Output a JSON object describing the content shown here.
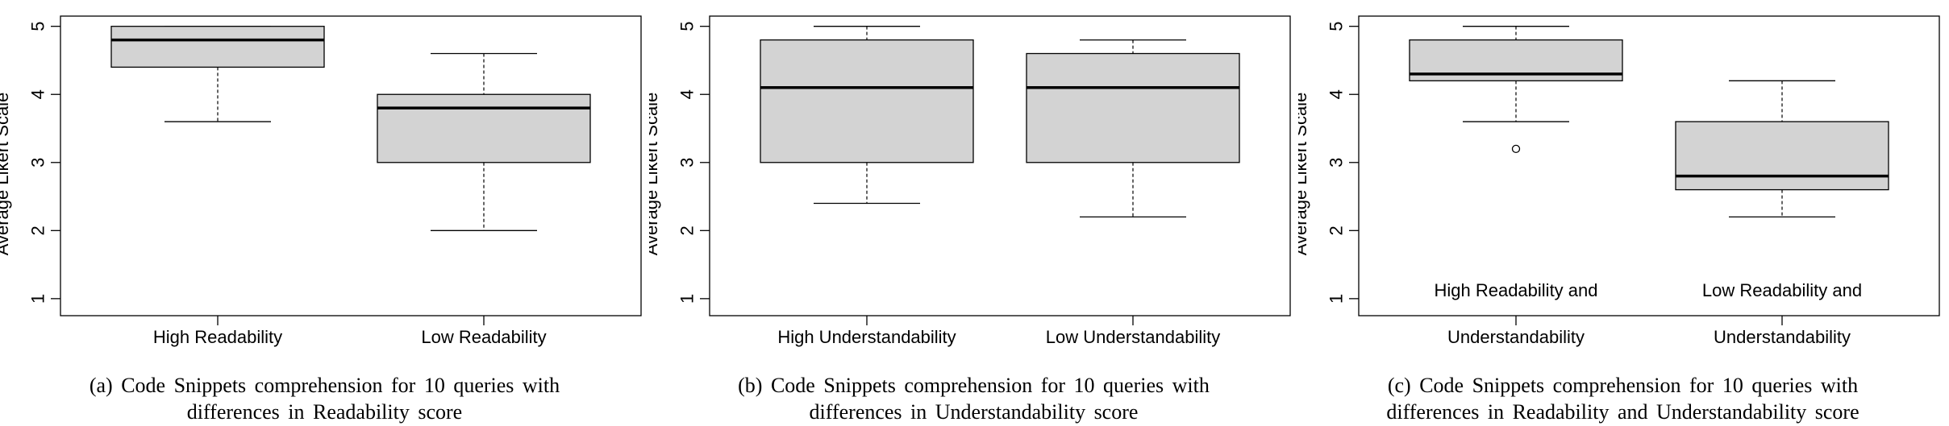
{
  "chart_data": [
    {
      "type": "box",
      "ylabel": "Average Likert Scale",
      "ylim": [
        0.75,
        5.15
      ],
      "yticks": [
        1,
        2,
        3,
        4,
        5
      ],
      "categories": [
        [
          "High Readability"
        ],
        [
          "Low Readability"
        ]
      ],
      "boxes": [
        {
          "whisker_low": 3.6,
          "q1": 4.4,
          "median": 4.8,
          "q3": 5.0,
          "whisker_high": 5.0,
          "outliers": []
        },
        {
          "whisker_low": 2.0,
          "q1": 3.0,
          "median": 3.8,
          "q3": 4.0,
          "whisker_high": 4.6,
          "outliers": []
        }
      ],
      "caption": [
        "(a) Code Snippets comprehension for 10 queries with",
        "differences in Readability score"
      ]
    },
    {
      "type": "box",
      "ylabel": "Average Likert Scale",
      "ylim": [
        0.75,
        5.15
      ],
      "yticks": [
        1,
        2,
        3,
        4,
        5
      ],
      "categories": [
        [
          "High Understandability"
        ],
        [
          "Low Understandability"
        ]
      ],
      "boxes": [
        {
          "whisker_low": 2.4,
          "q1": 3.0,
          "median": 4.1,
          "q3": 4.8,
          "whisker_high": 5.0,
          "outliers": []
        },
        {
          "whisker_low": 2.2,
          "q1": 3.0,
          "median": 4.1,
          "q3": 4.6,
          "whisker_high": 4.8,
          "outliers": []
        }
      ],
      "caption": [
        "(b) Code Snippets comprehension for 10 queries with",
        "differences in Understandability score"
      ]
    },
    {
      "type": "box",
      "ylabel": "Average Likert Scale",
      "ylim": [
        0.75,
        5.15
      ],
      "yticks": [
        1,
        2,
        3,
        4,
        5
      ],
      "categories": [
        [
          "High Readability and",
          "Understandability"
        ],
        [
          "Low Readability and",
          "Understandability"
        ]
      ],
      "boxes": [
        {
          "whisker_low": 3.6,
          "q1": 4.2,
          "median": 4.3,
          "q3": 4.8,
          "whisker_high": 5.0,
          "outliers": [
            3.2
          ]
        },
        {
          "whisker_low": 2.2,
          "q1": 2.6,
          "median": 2.8,
          "q3": 3.6,
          "whisker_high": 4.2,
          "outliers": []
        }
      ],
      "caption": [
        "(c) Code Snippets comprehension for 10 queries with",
        "differences in Readability and Understandability score"
      ]
    }
  ],
  "colors": {
    "box_fill": "#d3d3d3",
    "stroke": "#000000",
    "background": "#ffffff"
  }
}
